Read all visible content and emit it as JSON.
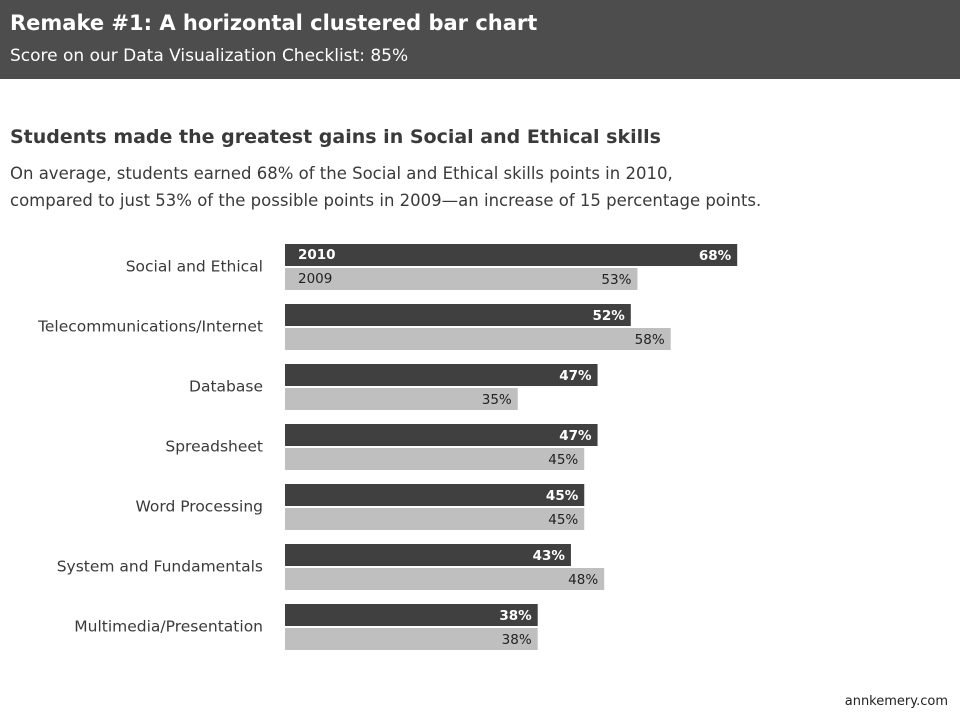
{
  "header": {
    "title": "Remake #1: A horizontal clustered bar chart",
    "subtitle": "Score on our Data Visualization Checklist:  85%"
  },
  "chart_title": "Students made the greatest gains in Social and Ethical skills",
  "chart_subtitle": [
    "On average, students earned 68% of the Social and Ethical skills points in 2010,",
    "compared to just 53% of the possible points in 2009—an increase of 15 percentage points."
  ],
  "footer": "annkemery.com",
  "colors": {
    "2010": "#404040",
    "2009": "#bfbfbf",
    "header_bg": "#4d4d4d"
  },
  "chart_data": {
    "type": "bar",
    "orientation": "horizontal",
    "categories": [
      "Social and Ethical",
      "Telecommunications/Internet",
      "Database",
      "Spreadsheet",
      "Word Processing",
      "System and Fundamentals",
      "Multimedia/Presentation"
    ],
    "series": [
      {
        "name": "2010",
        "values": [
          68,
          52,
          47,
          47,
          45,
          43,
          38
        ],
        "labels": [
          "68%",
          "52%",
          "47%",
          "47%",
          "45%",
          "43%",
          "38%"
        ]
      },
      {
        "name": "2009",
        "values": [
          53,
          58,
          35,
          45,
          45,
          48,
          38
        ],
        "labels": [
          "53%",
          "58%",
          "35%",
          "45%",
          "45%",
          "48%",
          "38%"
        ]
      }
    ],
    "unit": "%",
    "xlim": [
      0,
      100
    ],
    "legend": "inside first bars",
    "grid": false,
    "axis_visible": false
  }
}
